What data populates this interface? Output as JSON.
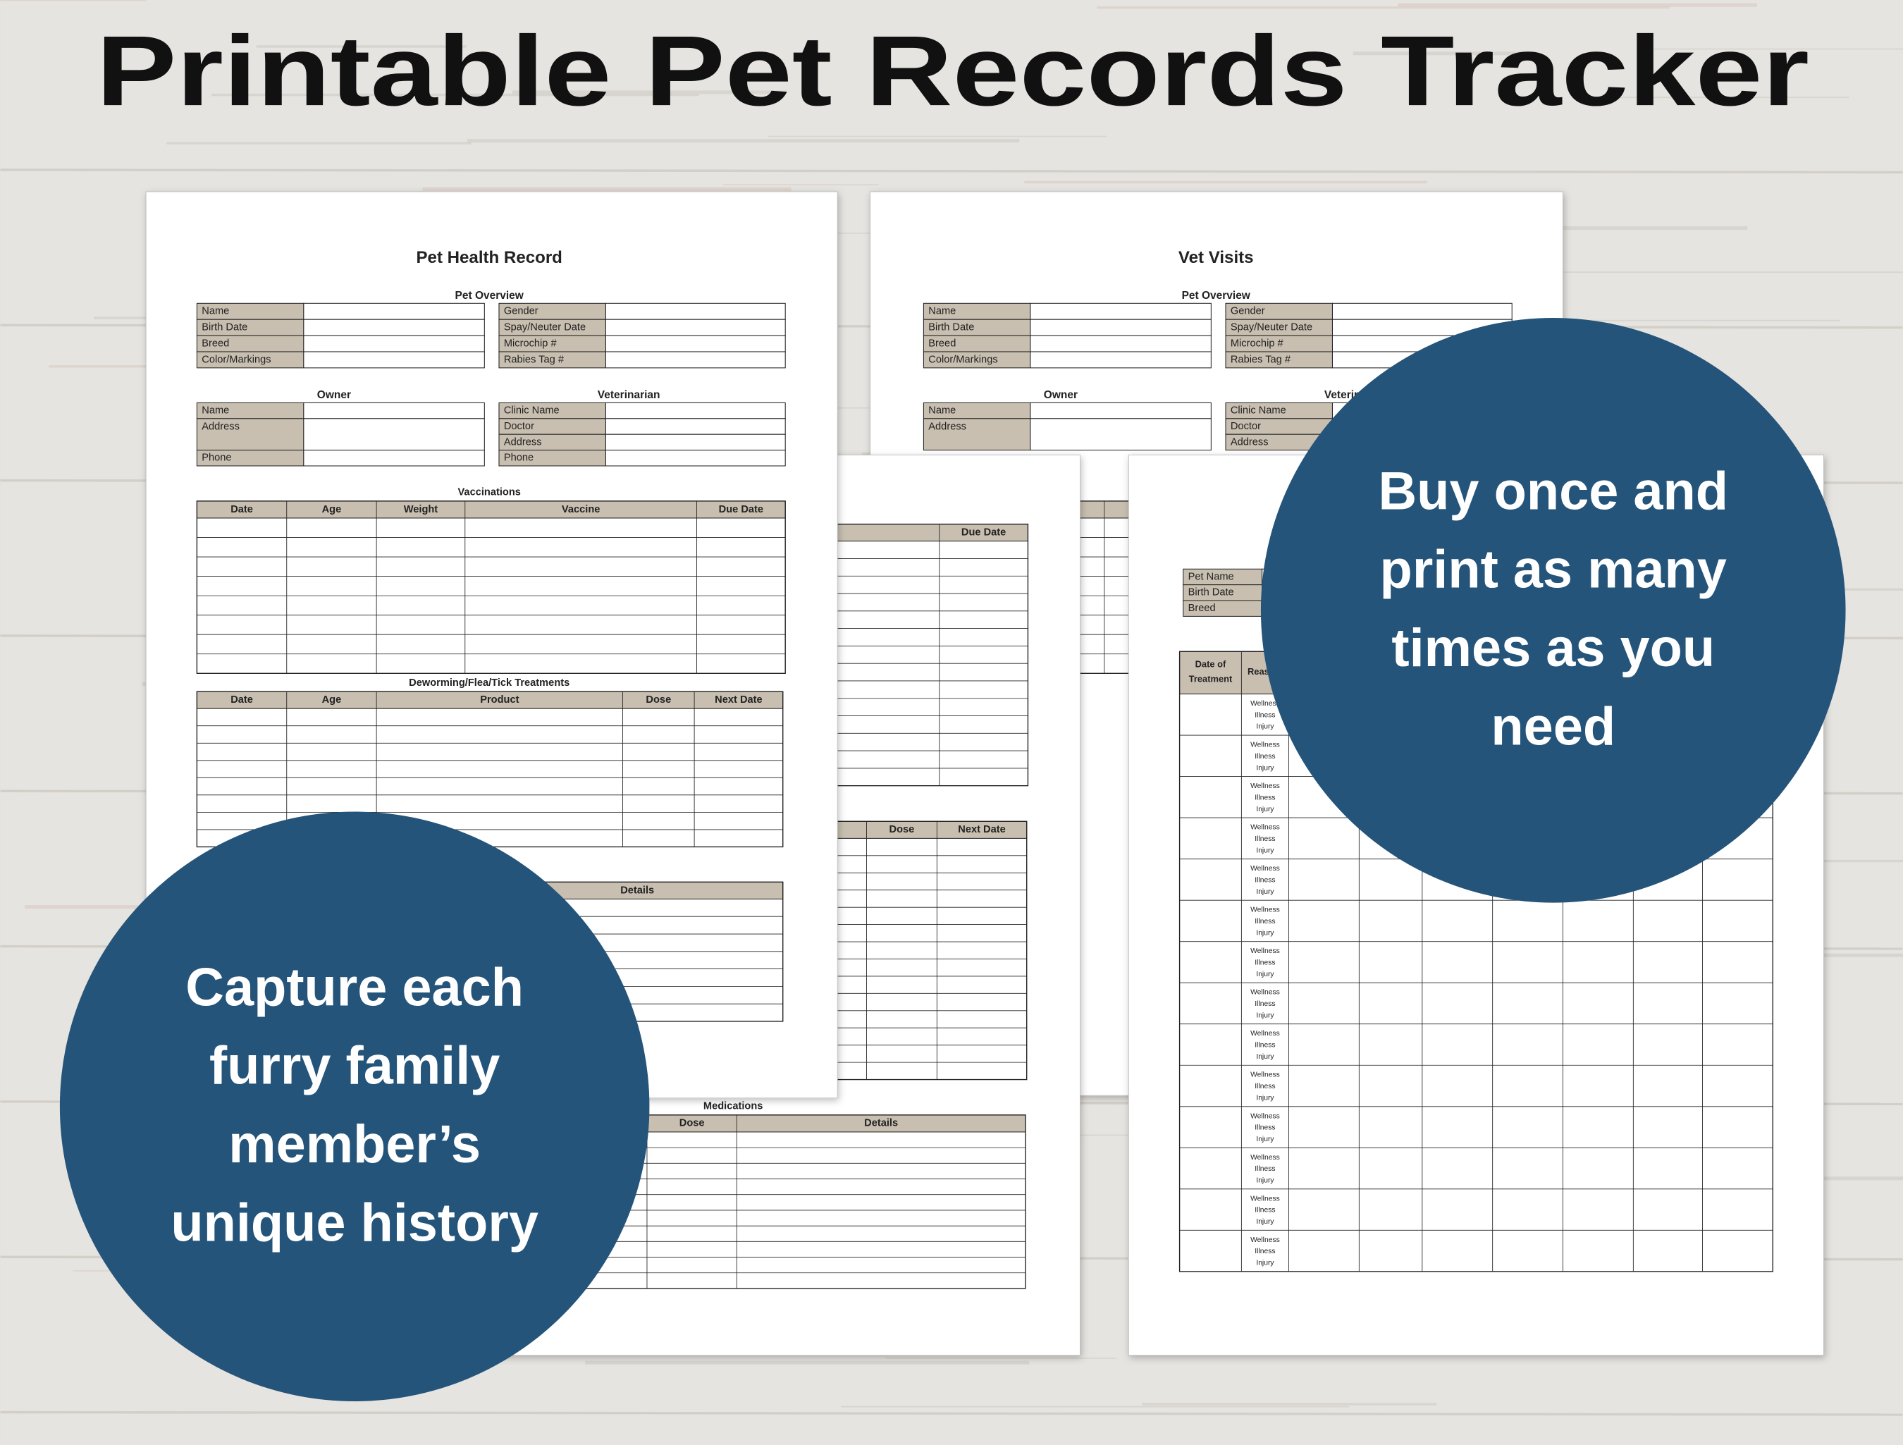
{
  "title": "Printable Pet Records Tracker",
  "callouts": {
    "right": [
      "Buy once and",
      "print as many",
      "times as you",
      "need"
    ],
    "left": [
      "Capture each",
      "furry family",
      "member’s",
      "unique history"
    ]
  },
  "health_record": {
    "title": "Pet Health Record",
    "overview": {
      "heading": "Pet Overview",
      "left": [
        "Name",
        "Birth Date",
        "Breed",
        "Color/Markings"
      ],
      "right": [
        "Gender",
        "Spay/Neuter Date",
        "Microchip #",
        "Rabies Tag #"
      ]
    },
    "owner": {
      "heading": "Owner",
      "fields": [
        "Name",
        "Address",
        "Phone"
      ]
    },
    "veterinarian": {
      "heading": "Veterinarian",
      "fields": [
        "Clinic Name",
        "Doctor",
        "Address",
        "Phone"
      ]
    },
    "vaccinations": {
      "heading": "Vaccinations",
      "columns": [
        "Date",
        "Age",
        "Weight",
        "Vaccine",
        "Due Date"
      ]
    },
    "treatments": {
      "heading": "Deworming/Flea/Tick Treatments",
      "columns": [
        "Date",
        "Age",
        "Product",
        "Dose",
        "Next Date"
      ]
    },
    "details_column": "Details"
  },
  "vet_visits": {
    "title": "Vet Visits",
    "overview": {
      "heading": "Pet Overview",
      "left": [
        "Name",
        "Birth Date",
        "Breed",
        "Color/Markings"
      ],
      "right": [
        "Gender",
        "Spay/Neuter Date",
        "Microchip #",
        "Rabies Tag #"
      ]
    },
    "owner": {
      "heading": "Owner",
      "fields": [
        "Name",
        "Address"
      ]
    },
    "veterinarian": {
      "heading": "Veterinarian",
      "fields": [
        "Clinic Name",
        "Doctor",
        "Address"
      ]
    }
  },
  "middle_page": {
    "vaccinations_column": "Due Date",
    "treatments_columns": [
      "Dose",
      "Next Date"
    ],
    "medications": {
      "heading": "Medications",
      "columns": [
        "Dose",
        "Details"
      ]
    }
  },
  "treatment_log": {
    "pet_fields": [
      "Pet Name",
      "Birth Date",
      "Breed"
    ],
    "date_column": [
      "Date of",
      "Treatment"
    ],
    "reason_column": "Reason",
    "reason_options": [
      "Wellness",
      "Illness",
      "Injury"
    ]
  }
}
